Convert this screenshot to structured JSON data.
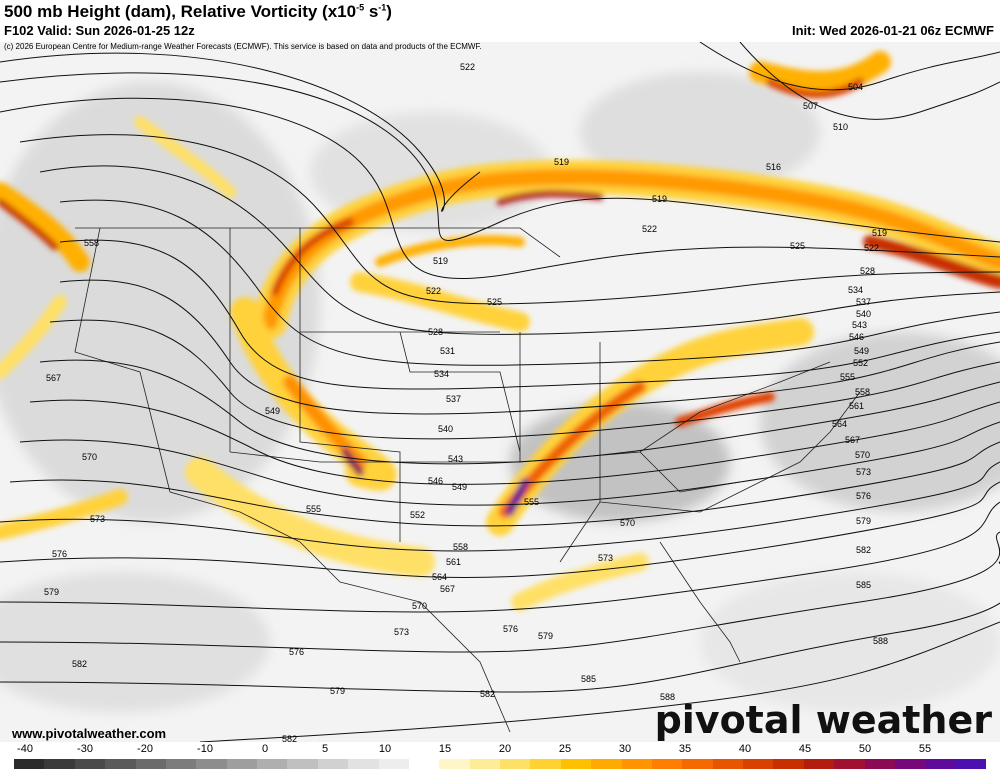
{
  "header": {
    "title_main": "500 mb Height (dam), Relative Vorticity (x10",
    "title_exp": "-5",
    "title_unit": " s",
    "title_unit_exp": "-1",
    "title_close": ")",
    "valid": "F102 Valid: Sun 2026-01-25 12z",
    "init": "Init: Wed 2026-01-21 06z ECMWF",
    "copyright": "(c) 2026 European Centre for Medium-range Weather Forecasts (ECMWF). This service is based on data and products of the ECMWF."
  },
  "footer": {
    "website": "www.pivotalweather.com",
    "brand": "pivotal weather"
  },
  "map": {
    "contour_labels": [
      "522",
      "519",
      "519",
      "522",
      "525",
      "528",
      "531",
      "534",
      "537",
      "540",
      "543",
      "546",
      "549",
      "552",
      "555",
      "558",
      "561",
      "564",
      "567",
      "570",
      "573",
      "576",
      "579",
      "582",
      "585",
      "588",
      "504",
      "507",
      "510",
      "516",
      "519",
      "522",
      "525",
      "528",
      "534",
      "537",
      "540",
      "543",
      "546",
      "549",
      "552",
      "555",
      "558",
      "561",
      "564",
      "567",
      "570",
      "573",
      "576",
      "579",
      "582",
      "585",
      "588",
      "558",
      "567",
      "570",
      "573",
      "576",
      "579",
      "582",
      "549",
      "552",
      "555",
      "558",
      "561",
      "564",
      "567",
      "570",
      "573",
      "576",
      "579",
      "582",
      "570",
      "573",
      "579",
      "582",
      "585",
      "588"
    ]
  },
  "colorbar": {
    "ticks": [
      "-40",
      "-30",
      "-20",
      "-10",
      "0",
      "5",
      "10",
      "15",
      "20",
      "25",
      "30",
      "35",
      "40",
      "45",
      "50",
      "55"
    ],
    "colors": [
      "#2b2b2b",
      "#3a3a3a",
      "#4a4a4a",
      "#5a5a5a",
      "#6b6b6b",
      "#7c7c7c",
      "#8d8d8d",
      "#9e9e9e",
      "#afafaf",
      "#c0c0c0",
      "#d1d1d1",
      "#e2e2e2",
      "#ededed",
      "#ffffff",
      "#fff6c8",
      "#ffec99",
      "#ffe066",
      "#ffd233",
      "#ffc000",
      "#ffaa00",
      "#ff9400",
      "#ff7e00",
      "#f56a00",
      "#e85500",
      "#d94100",
      "#c72f00",
      "#b31d10",
      "#a01030",
      "#8c0a55",
      "#76087a",
      "#5f0a9a",
      "#4d10b0"
    ]
  }
}
